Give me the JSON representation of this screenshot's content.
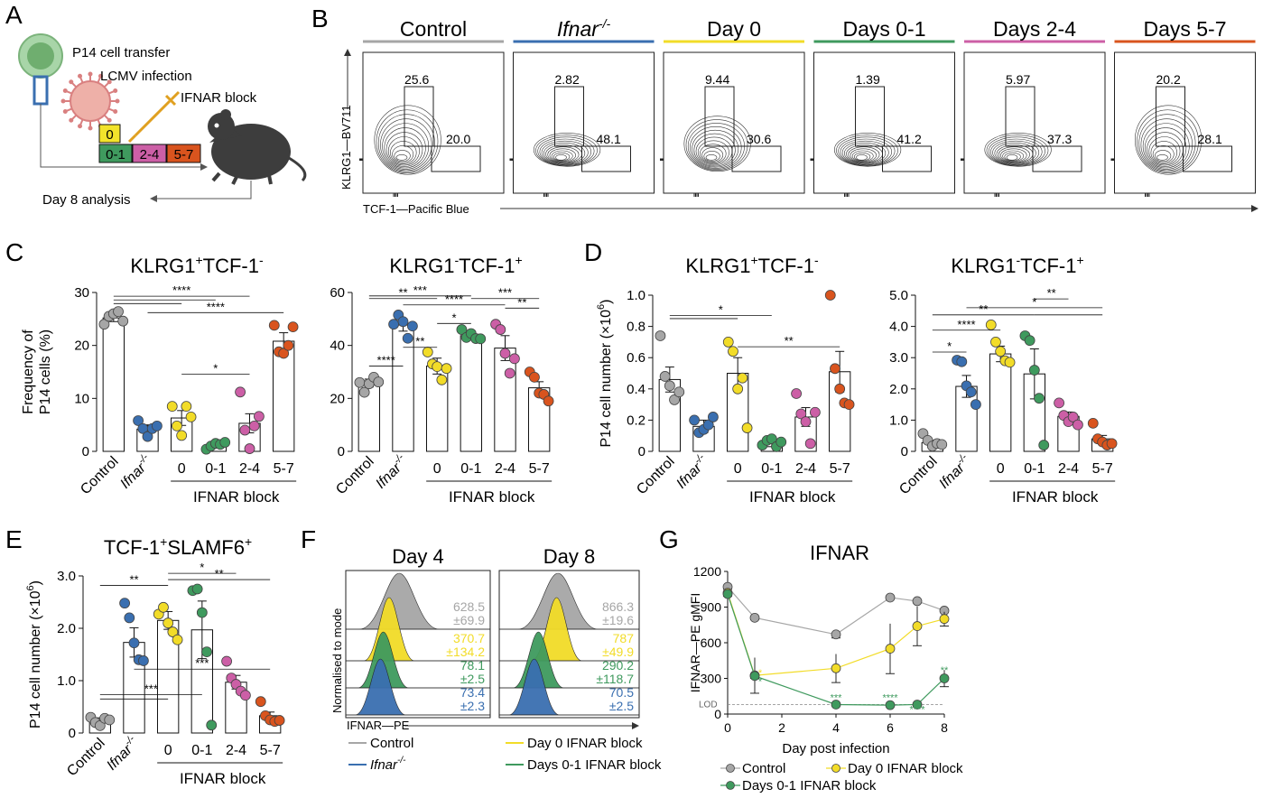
{
  "colors": {
    "control": "#a6a6a6",
    "ifnar": "#3a6fb0",
    "day0": "#f2dc28",
    "d01": "#3f9a5e",
    "d24": "#cc5fa6",
    "d57": "#d9541e",
    "black": "#111111"
  },
  "panels": {
    "A": "A",
    "B": "B",
    "C": "C",
    "D": "D",
    "E": "E",
    "F": "F",
    "G": "G"
  },
  "panel_a": {
    "lines": [
      "P14 cell transfer",
      "LCMV infection",
      "IFNAR block"
    ],
    "boxes": [
      "0",
      "0-1",
      "2-4",
      "5-7"
    ],
    "analysis": "Day 8 analysis"
  },
  "panel_b": {
    "ylabel": "KLRG1—BV711",
    "xlabel": "TCF-1—Pacific Blue",
    "plots": [
      {
        "title": "Control",
        "italic": false,
        "sup": "",
        "upper": "25.6",
        "lower": "20.0",
        "color": "#a6a6a6"
      },
      {
        "title": "Ifnar",
        "italic": true,
        "sup": "-/-",
        "upper": "2.82",
        "lower": "48.1",
        "color": "#3a6fb0"
      },
      {
        "title": "Day 0",
        "italic": false,
        "sup": "",
        "upper": "9.44",
        "lower": "30.6",
        "color": "#f2dc28"
      },
      {
        "title": "Days 0-1",
        "italic": false,
        "sup": "",
        "upper": "1.39",
        "lower": "41.2",
        "color": "#3f9a5e"
      },
      {
        "title": "Days 2-4",
        "italic": false,
        "sup": "",
        "upper": "5.97",
        "lower": "37.3",
        "color": "#cc5fa6"
      },
      {
        "title": "Days 5-7",
        "italic": false,
        "sup": "",
        "upper": "20.2",
        "lower": "28.1",
        "color": "#d9541e"
      }
    ]
  },
  "group_labels": {
    "control": "Control",
    "ifnar": "Ifnar",
    "ifnar_sup": "-/-",
    "block_ticks": [
      "0",
      "0-1",
      "2-4",
      "5-7"
    ],
    "block": "IFNAR block"
  },
  "chart_data": [
    {
      "id": "C1",
      "type": "bar",
      "panel": "C",
      "title_parts": [
        [
          "KLRG1",
          ""
        ],
        [
          "+",
          "sup"
        ],
        [
          "TCF-1",
          ""
        ],
        [
          "-",
          "sup"
        ]
      ],
      "ylabel": "Frequency of P14 cells (%)",
      "ylim": [
        0,
        30
      ],
      "yticks": [
        "0",
        "10",
        "20",
        "30"
      ],
      "categories": [
        "Control",
        "Ifnar-/-",
        "0",
        "0-1",
        "2-4",
        "5-7"
      ],
      "values": [
        25.2,
        4.2,
        6.3,
        1.2,
        5.3,
        20.8
      ],
      "sem": [
        0.7,
        0.8,
        1.4,
        0.3,
        1.8,
        1.6
      ],
      "points": [
        [
          24.0,
          25.5,
          26.0,
          26.4,
          24.6
        ],
        [
          5.8,
          4.3,
          2.8,
          4.3,
          4.8
        ],
        [
          8.5,
          4.8,
          3.0,
          8.5,
          6.5
        ],
        [
          0.4,
          1.0,
          1.5,
          1.3,
          1.7
        ],
        [
          11.2,
          4.0,
          0.5,
          4.8,
          6.6
        ],
        [
          23.8,
          18.8,
          18.5,
          20.0,
          23.5
        ]
      ],
      "sig": [
        {
          "a": 0,
          "b": 4,
          "y": 29.3,
          "label": "****"
        },
        {
          "a": 0,
          "b": 3,
          "y": 28.6,
          "label": ""
        },
        {
          "a": 0,
          "b": 2,
          "y": 27.9,
          "label": ""
        },
        {
          "a": 1,
          "b": 5,
          "y": 26.2,
          "label": "****"
        },
        {
          "a": 2,
          "b": 4,
          "y": 14.6,
          "label": "*"
        }
      ]
    },
    {
      "id": "C2",
      "type": "bar",
      "panel": "C",
      "title_parts": [
        [
          "KLRG1",
          ""
        ],
        [
          "-",
          "sup"
        ],
        [
          "TCF-1",
          ""
        ],
        [
          "+",
          "sup"
        ]
      ],
      "ylabel": "",
      "ylim": [
        0,
        60
      ],
      "yticks": [
        "0",
        "20",
        "40",
        "60"
      ],
      "categories": [
        "Control",
        "Ifnar-/-",
        "0",
        "0-1",
        "2-4",
        "5-7"
      ],
      "values": [
        25.8,
        47.7,
        32.2,
        43.7,
        39.0,
        24.0
      ],
      "sem": [
        1.5,
        2.3,
        3.0,
        1.2,
        4.7,
        2.3
      ],
      "points": [
        [
          26.0,
          22.3,
          25.5,
          28.0,
          26.2
        ],
        [
          48.0,
          51.5,
          49.0,
          42.7,
          47.3
        ],
        [
          37.5,
          33.0,
          32.0,
          27.0,
          31.3
        ],
        [
          46.0,
          43.0,
          44.5,
          42.6,
          42.5
        ],
        [
          48.0,
          46.0,
          37.0,
          29.5,
          35.0
        ],
        [
          30.0,
          28.0,
          22.0,
          21.5,
          19.0
        ]
      ],
      "sig": [
        {
          "a": 0,
          "b": 3,
          "y": 58.7,
          "label": "***"
        },
        {
          "a": 0,
          "b": 2,
          "y": 57.7,
          "label": "**"
        },
        {
          "a": 3,
          "b": 5,
          "y": 57.7,
          "label": "***"
        },
        {
          "a": 1,
          "b": 4,
          "y": 55.3,
          "label": "****"
        },
        {
          "a": 4,
          "b": 5,
          "y": 54.1,
          "label": "**"
        },
        {
          "a": 2,
          "b": 3,
          "y": 48.3,
          "label": "*"
        },
        {
          "a": 1,
          "b": 2,
          "y": 39.3,
          "label": "**"
        },
        {
          "a": 0,
          "b": 1,
          "y": 32.2,
          "label": "****"
        }
      ]
    },
    {
      "id": "D1",
      "type": "bar",
      "panel": "D",
      "title_parts": [
        [
          "KLRG1",
          ""
        ],
        [
          "+",
          "sup"
        ],
        [
          "TCF-1",
          ""
        ],
        [
          "-",
          "sup"
        ]
      ],
      "ylabel": "P14 cell number (×10",
      "ylabel_sup": "6",
      "ylabel_end": ")",
      "ylim": [
        0,
        1.0
      ],
      "yticks": [
        "0",
        "0.2",
        "0.4",
        "0.6",
        "0.8",
        "1.0"
      ],
      "categories": [
        "Control",
        "Ifnar-/-",
        "0",
        "0-1",
        "2-4",
        "5-7"
      ],
      "values": [
        0.46,
        0.16,
        0.5,
        0.05,
        0.22,
        0.51
      ],
      "sem": [
        0.08,
        0.04,
        0.1,
        0.02,
        0.06,
        0.13
      ],
      "points": [
        [
          0.74,
          0.48,
          0.42,
          0.33,
          0.38
        ],
        [
          0.2,
          0.12,
          0.14,
          0.17,
          0.22
        ],
        [
          0.7,
          0.64,
          0.4,
          0.47,
          0.15
        ],
        [
          0.04,
          0.07,
          0.08,
          0.03,
          0.06
        ],
        [
          0.37,
          0.24,
          0.19,
          0.05,
          0.25
        ],
        [
          1.0,
          0.53,
          0.4,
          0.31,
          0.3
        ]
      ],
      "sig": [
        {
          "a": 0,
          "b": 3,
          "y": 0.87,
          "label": "*"
        },
        {
          "a": 0,
          "b": 2,
          "y": 0.85,
          "label": ""
        },
        {
          "a": 2,
          "b": 5,
          "y": 0.67,
          "label": "**"
        }
      ]
    },
    {
      "id": "D2",
      "type": "bar",
      "panel": "D",
      "title_parts": [
        [
          "KLRG1",
          ""
        ],
        [
          "-",
          "sup"
        ],
        [
          "TCF-1",
          ""
        ],
        [
          "+",
          "sup"
        ]
      ],
      "ylabel": "",
      "ylim": [
        0,
        5.0
      ],
      "yticks": [
        "0",
        "1.0",
        "2.0",
        "3.0",
        "4.0",
        "5.0"
      ],
      "categories": [
        "Control",
        "Ifnar-/-",
        "0",
        "0-1",
        "2-4",
        "5-7"
      ],
      "values": [
        0.28,
        2.08,
        3.12,
        2.48,
        1.12,
        0.4
      ],
      "sem": [
        0.08,
        0.35,
        0.25,
        0.8,
        0.14,
        0.11
      ],
      "points": [
        [
          0.57,
          0.35,
          0.17,
          0.25,
          0.22
        ],
        [
          2.92,
          2.87,
          2.1,
          1.9,
          1.5
        ],
        [
          4.05,
          3.5,
          3.2,
          2.9,
          2.85
        ],
        [
          3.7,
          3.55,
          2.6,
          1.7,
          0.2
        ],
        [
          1.55,
          1.15,
          0.95,
          1.1,
          0.85
        ],
        [
          0.9,
          0.4,
          0.3,
          0.2,
          0.25
        ]
      ],
      "sig": [
        {
          "a": 3,
          "b": 4,
          "y": 4.88,
          "label": "**"
        },
        {
          "a": 1,
          "b": 5,
          "y": 4.6,
          "label": "*"
        },
        {
          "a": 0,
          "b": 3,
          "y": 4.37,
          "label": "**"
        },
        {
          "a": 3,
          "b": 5,
          "y": 4.37,
          "label": ""
        },
        {
          "a": 0,
          "b": 2,
          "y": 3.88,
          "label": "****"
        },
        {
          "a": 0,
          "b": 1,
          "y": 3.18,
          "label": "*"
        }
      ]
    },
    {
      "id": "E1",
      "type": "bar",
      "panel": "E",
      "title_parts": [
        [
          "TCF-1",
          ""
        ],
        [
          "+",
          "sup"
        ],
        [
          "SLAMF6",
          ""
        ],
        [
          "+",
          "sup"
        ]
      ],
      "ylabel": "P14 cell number (×10",
      "ylabel_sup": "6",
      "ylabel_end": ")",
      "ylim": [
        0,
        3.0
      ],
      "yticks": [
        "0",
        "1.0",
        "2.0",
        "3.0"
      ],
      "categories": [
        "Control",
        "Ifnar-/-",
        "0",
        "0-1",
        "2-4",
        "5-7"
      ],
      "values": [
        0.23,
        1.73,
        2.15,
        1.97,
        0.97,
        0.33
      ],
      "sem": [
        0.06,
        0.28,
        0.17,
        0.55,
        0.13,
        0.07
      ],
      "points": [
        [
          0.3,
          0.2,
          0.14,
          0.28,
          0.25
        ],
        [
          2.48,
          2.2,
          1.72,
          1.4,
          1.38
        ],
        [
          2.27,
          2.4,
          2.1,
          1.93,
          1.78
        ],
        [
          2.72,
          2.75,
          2.3,
          1.55,
          0.15
        ],
        [
          1.37,
          1.05,
          0.93,
          0.8,
          0.72
        ],
        [
          0.6,
          0.33,
          0.25,
          0.22,
          0.24
        ]
      ],
      "sig": [
        {
          "a": 0,
          "b": 2,
          "y": 2.82,
          "label": "**"
        },
        {
          "a": 2,
          "b": 4,
          "y": 3.05,
          "label": "*"
        },
        {
          "a": 2,
          "b": 5,
          "y": 2.93,
          "label": "**"
        },
        {
          "a": 1,
          "b": 5,
          "y": 1.22,
          "label": "***"
        },
        {
          "a": 0,
          "b": 3,
          "y": 0.73,
          "label": "***"
        },
        {
          "a": 0,
          "b": 2,
          "y": 0.65,
          "label": ""
        }
      ]
    },
    {
      "id": "G1",
      "type": "line",
      "panel": "G",
      "title": "IFNAR",
      "xlabel": "Day post infection",
      "ylabel": "IFNAR—PE gMFI",
      "xlim": [
        0,
        8
      ],
      "ylim": [
        0,
        1200
      ],
      "xticks": [
        "0",
        "2",
        "4",
        "6",
        "8"
      ],
      "yticks": [
        "0",
        "300",
        "600",
        "900",
        "1200"
      ],
      "lod_label": "LOD",
      "lod": 80,
      "series": [
        {
          "name": "Control",
          "color": "#a6a6a6",
          "x": [
            0,
            1,
            4,
            6,
            7,
            8
          ],
          "y": [
            1070,
            810,
            670,
            980,
            950,
            870
          ],
          "err": [
            20,
            15,
            30,
            15,
            15,
            15
          ]
        },
        {
          "name": "Day 0 IFNAR block",
          "color": "#f2dc28",
          "x": [
            0,
            1,
            4,
            6,
            7,
            8
          ],
          "y": [
            1020,
            325,
            385,
            550,
            740,
            800
          ],
          "err": [
            20,
            150,
            120,
            210,
            165,
            60
          ]
        },
        {
          "name": "Days 0-1 IFNAR block",
          "color": "#3f9a5e",
          "x": [
            0,
            1,
            4,
            6,
            7,
            8
          ],
          "y": [
            1010,
            320,
            80,
            75,
            80,
            300
          ],
          "err": [
            20,
            20,
            10,
            10,
            10,
            70
          ]
        }
      ],
      "stars": [
        {
          "x": 1.2,
          "y": 320,
          "label": "*",
          "color": "#f2dc28"
        },
        {
          "x": 1.2,
          "y": 245,
          "label": "*",
          "color": "#3f9a5e"
        },
        {
          "x": 4,
          "y": 110,
          "label": "***",
          "color": "#3f9a5e"
        },
        {
          "x": 6,
          "y": 110,
          "label": "****",
          "color": "#3f9a5e"
        },
        {
          "x": 7,
          "y": 10,
          "label": "****",
          "color": "#3f9a5e"
        },
        {
          "x": 8,
          "y": 340,
          "label": "**",
          "color": "#3f9a5e"
        }
      ]
    }
  ],
  "panel_f": {
    "days": [
      "Day 4",
      "Day 8"
    ],
    "ylabel": "Normalised to mode",
    "xlabel": "IFNAR—PE",
    "values": [
      [
        [
          "628.5",
          "±69.9",
          "#a6a6a6"
        ],
        [
          "370.7",
          "±134.2",
          "#f2dc28"
        ],
        [
          "78.1",
          "±2.5",
          "#3f9a5e"
        ],
        [
          "73.4",
          "±2.3",
          "#3a6fb0"
        ]
      ],
      [
        [
          "866.3",
          "±19.6",
          "#a6a6a6"
        ],
        [
          "787",
          "±49.9",
          "#f2dc28"
        ],
        [
          "290.2",
          "±118.7",
          "#3f9a5e"
        ],
        [
          "70.5",
          "±2.5",
          "#3a6fb0"
        ]
      ]
    ],
    "legend": [
      {
        "label": "Control",
        "color": "#a6a6a6",
        "italic": false,
        "sup": ""
      },
      {
        "label": "Day 0 IFNAR block",
        "color": "#f2dc28",
        "italic": false,
        "sup": ""
      },
      {
        "label": "Ifnar",
        "color": "#3a6fb0",
        "italic": true,
        "sup": "-/-"
      },
      {
        "label": "Days 0-1 IFNAR block",
        "color": "#3f9a5e",
        "italic": false,
        "sup": ""
      }
    ]
  }
}
